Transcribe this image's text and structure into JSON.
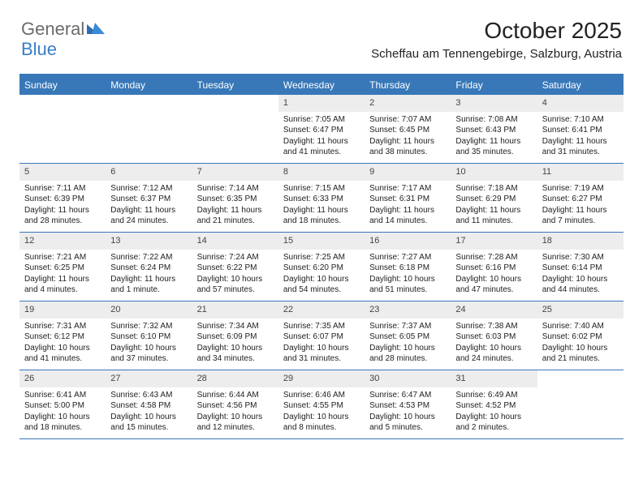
{
  "brand": {
    "word1": "General",
    "word2": "Blue"
  },
  "title": "October 2025",
  "location": "Scheffau am Tennengebirge, Salzburg, Austria",
  "colors": {
    "header_bg": "#3878b8",
    "header_text": "#ffffff",
    "daynum_bg": "#ededed",
    "border": "#3878b8",
    "logo_gray": "#6b6b6b",
    "logo_blue": "#3a7fc4",
    "text": "#222222",
    "page_bg": "#ffffff"
  },
  "typography": {
    "title_fontsize": 28,
    "location_fontsize": 15,
    "dayheader_fontsize": 12,
    "daynum_fontsize": 11,
    "cell_fontsize": 10
  },
  "day_names": [
    "Sunday",
    "Monday",
    "Tuesday",
    "Wednesday",
    "Thursday",
    "Friday",
    "Saturday"
  ],
  "weeks": [
    [
      {
        "n": "",
        "sr": "",
        "ss": "",
        "dl": ""
      },
      {
        "n": "",
        "sr": "",
        "ss": "",
        "dl": ""
      },
      {
        "n": "",
        "sr": "",
        "ss": "",
        "dl": ""
      },
      {
        "n": "1",
        "sr": "Sunrise: 7:05 AM",
        "ss": "Sunset: 6:47 PM",
        "dl": "Daylight: 11 hours and 41 minutes."
      },
      {
        "n": "2",
        "sr": "Sunrise: 7:07 AM",
        "ss": "Sunset: 6:45 PM",
        "dl": "Daylight: 11 hours and 38 minutes."
      },
      {
        "n": "3",
        "sr": "Sunrise: 7:08 AM",
        "ss": "Sunset: 6:43 PM",
        "dl": "Daylight: 11 hours and 35 minutes."
      },
      {
        "n": "4",
        "sr": "Sunrise: 7:10 AM",
        "ss": "Sunset: 6:41 PM",
        "dl": "Daylight: 11 hours and 31 minutes."
      }
    ],
    [
      {
        "n": "5",
        "sr": "Sunrise: 7:11 AM",
        "ss": "Sunset: 6:39 PM",
        "dl": "Daylight: 11 hours and 28 minutes."
      },
      {
        "n": "6",
        "sr": "Sunrise: 7:12 AM",
        "ss": "Sunset: 6:37 PM",
        "dl": "Daylight: 11 hours and 24 minutes."
      },
      {
        "n": "7",
        "sr": "Sunrise: 7:14 AM",
        "ss": "Sunset: 6:35 PM",
        "dl": "Daylight: 11 hours and 21 minutes."
      },
      {
        "n": "8",
        "sr": "Sunrise: 7:15 AM",
        "ss": "Sunset: 6:33 PM",
        "dl": "Daylight: 11 hours and 18 minutes."
      },
      {
        "n": "9",
        "sr": "Sunrise: 7:17 AM",
        "ss": "Sunset: 6:31 PM",
        "dl": "Daylight: 11 hours and 14 minutes."
      },
      {
        "n": "10",
        "sr": "Sunrise: 7:18 AM",
        "ss": "Sunset: 6:29 PM",
        "dl": "Daylight: 11 hours and 11 minutes."
      },
      {
        "n": "11",
        "sr": "Sunrise: 7:19 AM",
        "ss": "Sunset: 6:27 PM",
        "dl": "Daylight: 11 hours and 7 minutes."
      }
    ],
    [
      {
        "n": "12",
        "sr": "Sunrise: 7:21 AM",
        "ss": "Sunset: 6:25 PM",
        "dl": "Daylight: 11 hours and 4 minutes."
      },
      {
        "n": "13",
        "sr": "Sunrise: 7:22 AM",
        "ss": "Sunset: 6:24 PM",
        "dl": "Daylight: 11 hours and 1 minute."
      },
      {
        "n": "14",
        "sr": "Sunrise: 7:24 AM",
        "ss": "Sunset: 6:22 PM",
        "dl": "Daylight: 10 hours and 57 minutes."
      },
      {
        "n": "15",
        "sr": "Sunrise: 7:25 AM",
        "ss": "Sunset: 6:20 PM",
        "dl": "Daylight: 10 hours and 54 minutes."
      },
      {
        "n": "16",
        "sr": "Sunrise: 7:27 AM",
        "ss": "Sunset: 6:18 PM",
        "dl": "Daylight: 10 hours and 51 minutes."
      },
      {
        "n": "17",
        "sr": "Sunrise: 7:28 AM",
        "ss": "Sunset: 6:16 PM",
        "dl": "Daylight: 10 hours and 47 minutes."
      },
      {
        "n": "18",
        "sr": "Sunrise: 7:30 AM",
        "ss": "Sunset: 6:14 PM",
        "dl": "Daylight: 10 hours and 44 minutes."
      }
    ],
    [
      {
        "n": "19",
        "sr": "Sunrise: 7:31 AM",
        "ss": "Sunset: 6:12 PM",
        "dl": "Daylight: 10 hours and 41 minutes."
      },
      {
        "n": "20",
        "sr": "Sunrise: 7:32 AM",
        "ss": "Sunset: 6:10 PM",
        "dl": "Daylight: 10 hours and 37 minutes."
      },
      {
        "n": "21",
        "sr": "Sunrise: 7:34 AM",
        "ss": "Sunset: 6:09 PM",
        "dl": "Daylight: 10 hours and 34 minutes."
      },
      {
        "n": "22",
        "sr": "Sunrise: 7:35 AM",
        "ss": "Sunset: 6:07 PM",
        "dl": "Daylight: 10 hours and 31 minutes."
      },
      {
        "n": "23",
        "sr": "Sunrise: 7:37 AM",
        "ss": "Sunset: 6:05 PM",
        "dl": "Daylight: 10 hours and 28 minutes."
      },
      {
        "n": "24",
        "sr": "Sunrise: 7:38 AM",
        "ss": "Sunset: 6:03 PM",
        "dl": "Daylight: 10 hours and 24 minutes."
      },
      {
        "n": "25",
        "sr": "Sunrise: 7:40 AM",
        "ss": "Sunset: 6:02 PM",
        "dl": "Daylight: 10 hours and 21 minutes."
      }
    ],
    [
      {
        "n": "26",
        "sr": "Sunrise: 6:41 AM",
        "ss": "Sunset: 5:00 PM",
        "dl": "Daylight: 10 hours and 18 minutes."
      },
      {
        "n": "27",
        "sr": "Sunrise: 6:43 AM",
        "ss": "Sunset: 4:58 PM",
        "dl": "Daylight: 10 hours and 15 minutes."
      },
      {
        "n": "28",
        "sr": "Sunrise: 6:44 AM",
        "ss": "Sunset: 4:56 PM",
        "dl": "Daylight: 10 hours and 12 minutes."
      },
      {
        "n": "29",
        "sr": "Sunrise: 6:46 AM",
        "ss": "Sunset: 4:55 PM",
        "dl": "Daylight: 10 hours and 8 minutes."
      },
      {
        "n": "30",
        "sr": "Sunrise: 6:47 AM",
        "ss": "Sunset: 4:53 PM",
        "dl": "Daylight: 10 hours and 5 minutes."
      },
      {
        "n": "31",
        "sr": "Sunrise: 6:49 AM",
        "ss": "Sunset: 4:52 PM",
        "dl": "Daylight: 10 hours and 2 minutes."
      },
      {
        "n": "",
        "sr": "",
        "ss": "",
        "dl": ""
      }
    ]
  ]
}
